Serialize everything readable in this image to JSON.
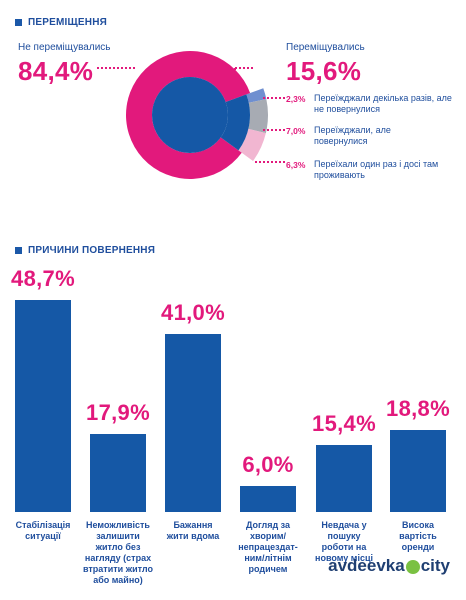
{
  "section1": {
    "title": "ПЕРЕМІЩЕННЯ"
  },
  "section2": {
    "title": "ПРИЧИНИ ПОВЕРНЕННЯ"
  },
  "donut": {
    "left_label": "Не переміщувались",
    "left_value": "84,4%",
    "right_label": "Переміщувались",
    "right_value": "15,6%",
    "breakdown": [
      {
        "pct": "2,3%",
        "text": "Переїжджали декілька разів, але не повернулися",
        "color": "#6f8fd0"
      },
      {
        "pct": "7,0%",
        "text": "Переїжджали, але повернулися",
        "color": "#a7abb3"
      },
      {
        "pct": "6,3%",
        "text": "Переїхали один раз і досі там проживають",
        "color": "#f1b6d1"
      }
    ],
    "colors": {
      "outer_main": "#e2197c",
      "inner": "#1558a6",
      "moved": "#1558a6"
    }
  },
  "chart_data": [
    {
      "type": "pie",
      "title": "ПЕРЕМІЩЕННЯ",
      "slices": [
        {
          "label": "Не переміщувались",
          "value": 84.4
        },
        {
          "label": "Переїжджали декілька разів, але не повернулися",
          "value": 2.3
        },
        {
          "label": "Переїжджали, але повернулися",
          "value": 7.0
        },
        {
          "label": "Переїхали один раз і досі там проживають",
          "value": 6.3
        }
      ]
    },
    {
      "type": "bar",
      "title": "ПРИЧИНИ ПОВЕРНЕННЯ",
      "categories": [
        "Стабілізація ситуації",
        "Неможливість залишити житло без нагляду (страх втратити житло або майно)",
        "Бажання жити вдома",
        "Догляд за хворим/ непрацездат- ним/літнім родичем",
        "Невдача у пошуку роботи на новому місці",
        "Висока вартість оренди"
      ],
      "values": [
        48.7,
        17.9,
        41.0,
        6.0,
        15.4,
        18.8
      ],
      "value_labels": [
        "48,7%",
        "17,9%",
        "41,0%",
        "6,0%",
        "15,4%",
        "18,8%"
      ],
      "category_labels": [
        "Стабілізація\nситуації",
        "Неможливість\nзалишити\nжитло без\nнагляду (страх\nвтратити житло\nабо майно)",
        "Бажання\nжити вдома",
        "Догляд за\nхворим/\nнепрацездат-\nним/літнім\nродичем",
        "Невдача у\nпошуку\nроботи на\nновому місці",
        "Висока\nвартість\nоренди"
      ],
      "ylim": [
        0,
        50
      ],
      "color": "#1558a6"
    }
  ],
  "watermark": {
    "prefix": "avdeevka",
    "suffix": "city"
  }
}
